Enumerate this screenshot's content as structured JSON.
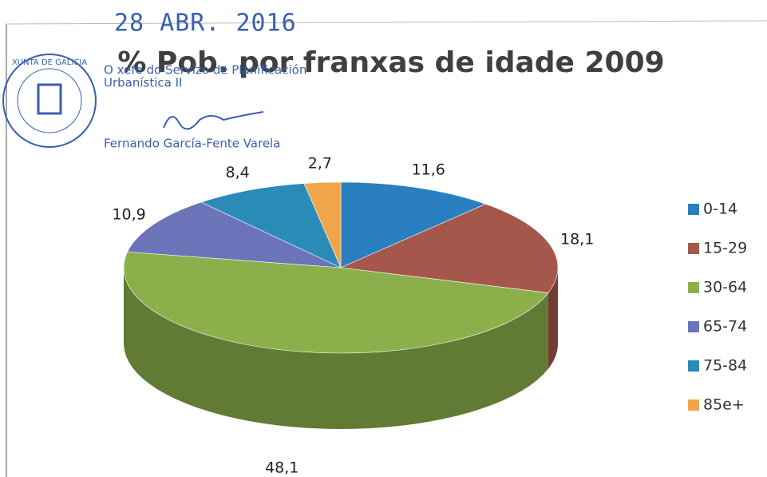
{
  "chart_data": {
    "type": "pie",
    "title": "% Pob. por franxas de idade 2009",
    "categories": [
      "0-14",
      "15-29",
      "30-64",
      "65-74",
      "75-84",
      "85e+"
    ],
    "values": [
      11.6,
      18.1,
      48.1,
      10.9,
      8.4,
      2.7
    ],
    "value_labels": [
      "11,6",
      "18,1",
      "48,1",
      "10,9",
      "8,4",
      "2,7"
    ],
    "colors": [
      "#2a7fc0",
      "#a5574b",
      "#8bb04b",
      "#6b74b8",
      "#2b8bb8",
      "#f0a54a"
    ],
    "legend": "right"
  },
  "stamp": {
    "date": "28 ABR. 2016",
    "seal": "XUNTA DE GALICIA",
    "lines": [
      "O xefe do Servizo de Planificación",
      "Urbanística II"
    ],
    "signer": "Fernando García-Fente Varela"
  }
}
